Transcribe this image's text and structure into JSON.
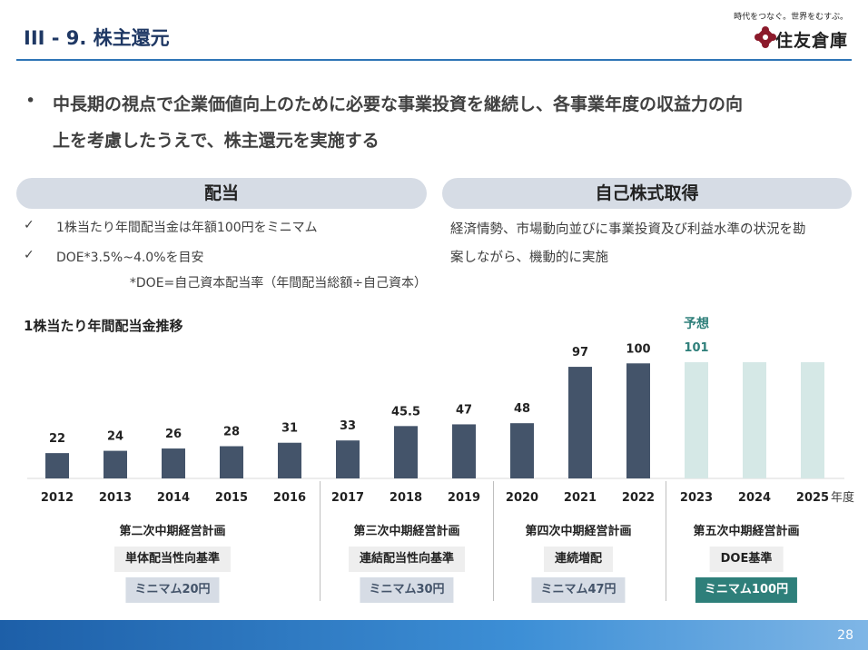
{
  "header": {
    "title": "III - 9. 株主還元",
    "tagline": "時代をつなぐ。世界をむすぶ。",
    "logo_text": "住友倉庫"
  },
  "bullet": {
    "lines": [
      "中長期の視点で企業価値向上のために必要な事業投資を継続し、各事業年度の収益力の向",
      "上を考慮したうえで、株主還元を実施する"
    ]
  },
  "dividend": {
    "title": "配当",
    "items": [
      "1株当たり年間配当金は年額100円をミニマム",
      "DOE*3.5%~4.0%を目安"
    ],
    "note": "*DOE=自己資本配当率（年間配当総額÷自己資本）"
  },
  "buyback": {
    "title": "自己株式取得",
    "lines": [
      "経済情勢、市場動向並びに事業投資及び利益水準の状況を勘",
      "案しながら、機動的に実施"
    ]
  },
  "chart_data": {
    "type": "bar",
    "title": "1株当たり年間配当金推移",
    "categories": [
      "2012",
      "2013",
      "2014",
      "2015",
      "2016",
      "2017",
      "2018",
      "2019",
      "2020",
      "2021",
      "2022",
      "2023",
      "2024",
      "2025"
    ],
    "values": [
      22,
      24,
      26,
      28,
      31,
      33,
      45.5,
      47,
      48,
      97,
      100,
      101,
      101,
      101
    ],
    "value_labels": [
      "22",
      "24",
      "26",
      "28",
      "31",
      "33",
      "45.5",
      "47",
      "48",
      "97",
      "100",
      "101",
      null,
      null
    ],
    "colors": [
      "#44546a",
      "#44546a",
      "#44546a",
      "#44546a",
      "#44546a",
      "#44546a",
      "#44546a",
      "#44546a",
      "#44546a",
      "#44546a",
      "#44546a",
      "#d5e8e6",
      "#d5e8e6",
      "#d5e8e6"
    ],
    "annotation": "予想",
    "x_unit": "年度"
  },
  "plans": [
    {
      "name": "第二次中期経営計画",
      "policy": "単体配当性向基準",
      "minimum": "ミニマム20円"
    },
    {
      "name": "第三次中期経営計画",
      "policy": "連結配当性向基準",
      "minimum": "ミニマム30円"
    },
    {
      "name": "第四次中期経営計画",
      "policy": "連続増配",
      "minimum": "ミニマム47円"
    },
    {
      "name": "第五次中期経営計画",
      "policy": "DOE基準",
      "minimum": "ミニマム100円"
    }
  ],
  "footer": {
    "page": "28"
  }
}
